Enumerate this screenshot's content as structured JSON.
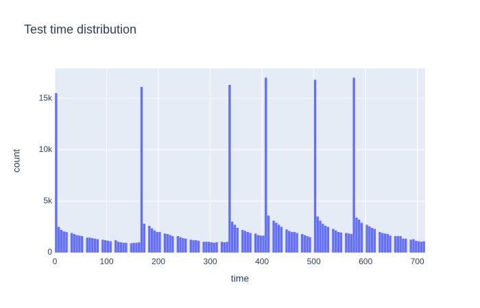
{
  "chart_data": {
    "type": "histogram",
    "title": "Test time distribution",
    "x_label": "time",
    "y_label": "count",
    "color": "#636efa",
    "bins": [
      0,
      5,
      10,
      15,
      20,
      25,
      30,
      35,
      40,
      45,
      50,
      55,
      60,
      65,
      70,
      75,
      80,
      85,
      90,
      95,
      100,
      105,
      110,
      115,
      120,
      125,
      130,
      135,
      140,
      145,
      150,
      155,
      160,
      165,
      170,
      175,
      180,
      185,
      190,
      195,
      200,
      205,
      210,
      215,
      220,
      225,
      230,
      235,
      240,
      245,
      250,
      255,
      260,
      265,
      270,
      275,
      280,
      285,
      290,
      295,
      300,
      305,
      310,
      315,
      320,
      325,
      330,
      335,
      340,
      345,
      350,
      355,
      360,
      365,
      370,
      375,
      380,
      385,
      390,
      395,
      400,
      405,
      410,
      415,
      420,
      425,
      430,
      435,
      440,
      445,
      450,
      455,
      460,
      465,
      470,
      475,
      480,
      485,
      490,
      495,
      500,
      505,
      510,
      515,
      520,
      525,
      530,
      535,
      540,
      545,
      550,
      555,
      560,
      565,
      570,
      575,
      580,
      585,
      590,
      595,
      600,
      605,
      610,
      615,
      620,
      625,
      630,
      635,
      640,
      645,
      650,
      655,
      660,
      665,
      670,
      675,
      680,
      685,
      690,
      695,
      700,
      705,
      710,
      715
    ],
    "values": [
      15500,
      2500,
      2200,
      2050,
      2000,
      0,
      1900,
      1800,
      1700,
      1650,
      1600,
      0,
      1450,
      1450,
      1400,
      1350,
      1300,
      0,
      1250,
      1200,
      1150,
      1100,
      0,
      1200,
      1050,
      1000,
      950,
      950,
      0,
      900,
      950,
      950,
      1000,
      16100,
      2800,
      0,
      2600,
      2350,
      2150,
      2000,
      2000,
      0,
      1850,
      1800,
      1700,
      1600,
      0,
      1600,
      1500,
      1400,
      1350,
      0,
      1250,
      1200,
      1200,
      1150,
      0,
      1050,
      1050,
      1050,
      1000,
      950,
      1000,
      0,
      1050,
      1000,
      1050,
      16300,
      3000,
      2700,
      2400,
      0,
      2200,
      2100,
      2000,
      1900,
      0,
      1850,
      1700,
      1650,
      1650,
      17000,
      3600,
      0,
      3100,
      2900,
      2700,
      2500,
      0,
      2250,
      2100,
      2000,
      2000,
      1900,
      0,
      1800,
      1700,
      1600,
      1500,
      0,
      16800,
      3500,
      3100,
      2800,
      2600,
      2500,
      0,
      2300,
      2150,
      2000,
      1950,
      0,
      1900,
      1850,
      1800,
      17000,
      3400,
      3200,
      2900,
      0,
      2700,
      2550,
      2400,
      2300,
      0,
      2000,
      1900,
      1850,
      1800,
      1650,
      0,
      1600,
      1600,
      1600,
      1350,
      1350,
      0,
      1250,
      1300,
      1150,
      1100,
      1050,
      1100
    ],
    "xlim": [
      0,
      715
    ],
    "xticks": [
      0,
      100,
      200,
      300,
      400,
      500,
      600,
      700
    ],
    "ylim": [
      0,
      17900
    ],
    "yticks": [
      0,
      {
        "value": 5000,
        "label": "5k"
      },
      {
        "value": 10000,
        "label": "10k"
      },
      {
        "value": 15000,
        "label": "15k"
      }
    ],
    "grid": true
  }
}
